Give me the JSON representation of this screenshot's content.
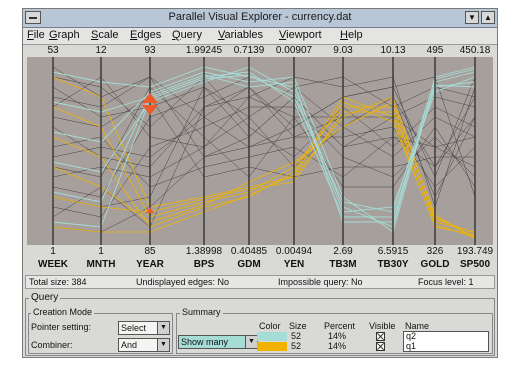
{
  "window": {
    "title": "Parallel Visual Explorer - currency.dat"
  },
  "menu": [
    "File",
    "Graph",
    "Scale",
    "Edges",
    "Query",
    "Variables",
    "Viewport",
    "Help"
  ],
  "axes": [
    {
      "name": "WEEK",
      "max": "53",
      "min": "1"
    },
    {
      "name": "MNTH",
      "max": "12",
      "min": "1"
    },
    {
      "name": "YEAR",
      "max": "93",
      "min": "85"
    },
    {
      "name": "BPS",
      "max": "1.99245",
      "min": "1.38998"
    },
    {
      "name": "GDM",
      "max": "0.7139",
      "min": "0.40485"
    },
    {
      "name": "YEN",
      "max": "0.00907",
      "min": "0.00494"
    },
    {
      "name": "TB3M",
      "max": "9.03",
      "min": "2.69"
    },
    {
      "name": "TB30Y",
      "max": "10.13",
      "min": "6.5915"
    },
    {
      "name": "GOLD",
      "max": "495",
      "min": "326"
    },
    {
      "name": "SP500",
      "max": "450.18",
      "min": "193.749"
    }
  ],
  "status": {
    "total": "Total size:  384",
    "undisplayed": "Undisplayed edges:  No",
    "impossible": "Impossible query:  No",
    "focus": "Focus level:  1"
  },
  "query": {
    "legend": "Query",
    "creation_legend": "Creation Mode",
    "pointer_label": "Pointer setting:",
    "pointer_value": "Select",
    "combiner_label": "Combiner:",
    "combiner_value": "And",
    "summary_legend": "Summary",
    "show_value": "Show many",
    "headers": {
      "color": "Color",
      "size": "Size",
      "percent": "Percent",
      "visible": "Visible",
      "name": "Name"
    },
    "rows": [
      {
        "color": "#a6dcd6",
        "size": "52",
        "percent": "14%",
        "name": "q2"
      },
      {
        "color": "#f0b400",
        "size": "52",
        "percent": "14%",
        "name": "q1"
      }
    ]
  }
}
